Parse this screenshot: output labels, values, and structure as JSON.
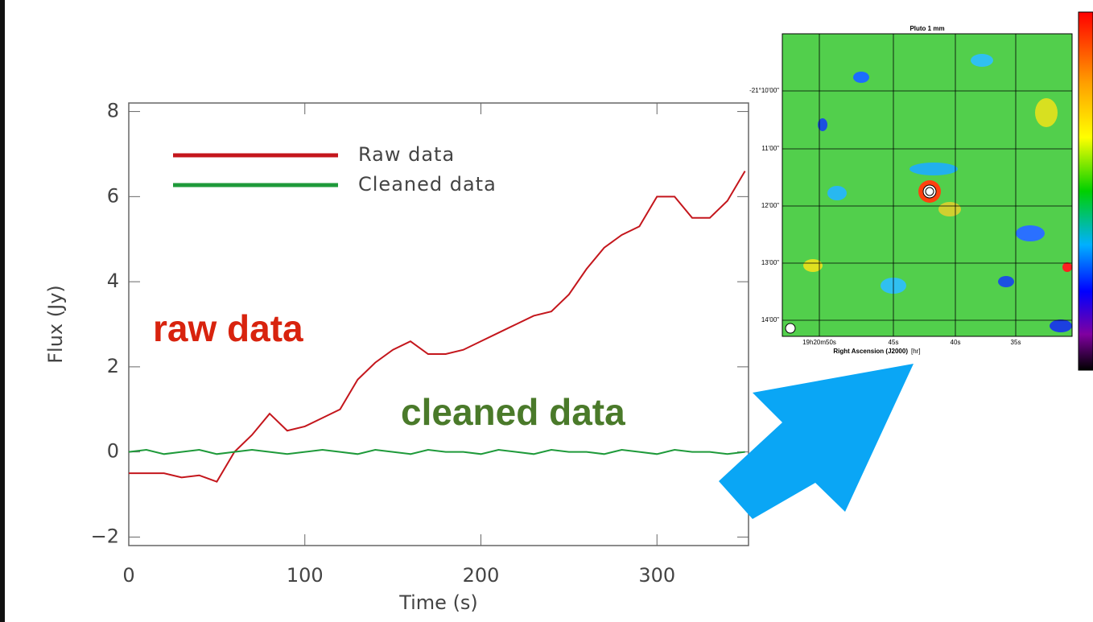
{
  "chart_data": {
    "type": "line",
    "x_label": "Time (s)",
    "y_label": "Flux (Jy)",
    "x": [
      0,
      10,
      20,
      30,
      40,
      50,
      60,
      70,
      80,
      90,
      100,
      110,
      120,
      130,
      140,
      150,
      160,
      170,
      180,
      190,
      200,
      210,
      220,
      230,
      240,
      250,
      260,
      270,
      280,
      290,
      300,
      310,
      320,
      330,
      340,
      350
    ],
    "series": [
      {
        "name": "Raw data",
        "color": "#c4161c",
        "values": [
          -0.5,
          -0.5,
          -0.5,
          -0.6,
          -0.55,
          -0.7,
          0.0,
          0.4,
          0.9,
          0.5,
          0.6,
          0.8,
          1.0,
          1.7,
          2.1,
          2.4,
          2.6,
          2.3,
          2.3,
          2.4,
          2.6,
          2.8,
          3.0,
          3.2,
          3.3,
          3.7,
          4.3,
          4.8,
          5.1,
          5.3,
          6.0,
          6.0,
          5.5,
          5.5,
          5.9,
          6.6
        ]
      },
      {
        "name": "Cleaned data",
        "color": "#1e9a3a",
        "values": [
          0.0,
          0.05,
          -0.05,
          0.0,
          0.05,
          -0.05,
          0.0,
          0.05,
          0.0,
          -0.05,
          0.0,
          0.05,
          0.0,
          -0.05,
          0.05,
          0.0,
          -0.05,
          0.05,
          0.0,
          0.0,
          -0.05,
          0.05,
          0.0,
          -0.05,
          0.05,
          0.0,
          0.0,
          -0.05,
          0.05,
          0.0,
          -0.05,
          0.05,
          0.0,
          0.0,
          -0.05,
          0.0
        ]
      }
    ],
    "xlim": [
      0,
      352
    ],
    "ylim": [
      -2.2,
      8.2
    ],
    "xticks": [
      0,
      100,
      200,
      300
    ],
    "yticks": [
      {
        "value": -2,
        "label": "−2"
      },
      0,
      2,
      4,
      6,
      8
    ],
    "annotations": [
      {
        "text": "raw data",
        "color": "#d8230e"
      },
      {
        "text": "cleaned data",
        "color": "#4a7a2a"
      }
    ]
  },
  "sky_map": {
    "title": "Pluto 1 mm",
    "dec_labels": [
      "-21°10'00\"",
      "11'00\"",
      "12'00\"",
      "13'00\"",
      "14'00\""
    ],
    "ra_labels": [
      "19h20m50s",
      "45s",
      "40s",
      "35s"
    ],
    "x_label": "Right Ascension (J2000)",
    "x_unit": "[hr]"
  }
}
